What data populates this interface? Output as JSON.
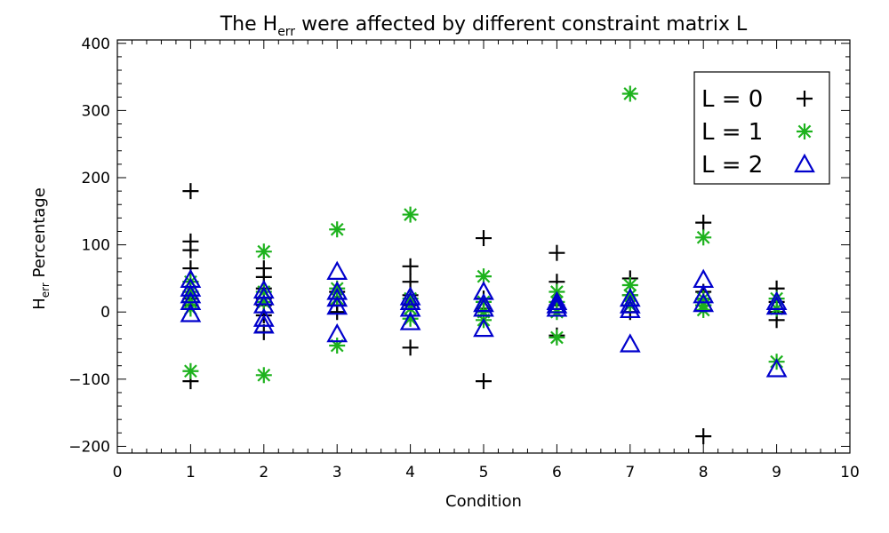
{
  "chart_data": {
    "type": "scatter",
    "title": {
      "prefix": "The H",
      "sub": "err",
      "suffix": " were affected by different constraint matrix L"
    },
    "xlabel": "Condition",
    "ylabel": {
      "prefix": "H",
      "sub": "err",
      "suffix": " Percentage"
    },
    "xlim": [
      0,
      10
    ],
    "ylim": [
      -210,
      405
    ],
    "xticks": [
      0,
      1,
      2,
      3,
      4,
      5,
      6,
      7,
      8,
      9,
      10
    ],
    "yticks": [
      -200,
      -100,
      0,
      100,
      200,
      300,
      400
    ],
    "grid": false,
    "legend_position": "top-right",
    "series": [
      {
        "name": "L = 0",
        "color": "#000000",
        "marker": "plus",
        "points": [
          {
            "x": 1,
            "y": 180
          },
          {
            "x": 1,
            "y": 105
          },
          {
            "x": 1,
            "y": 92
          },
          {
            "x": 1,
            "y": 65
          },
          {
            "x": 1,
            "y": 45
          },
          {
            "x": 1,
            "y": 30
          },
          {
            "x": 1,
            "y": 20
          },
          {
            "x": 1,
            "y": 10
          },
          {
            "x": 1,
            "y": -103
          },
          {
            "x": 2,
            "y": 65
          },
          {
            "x": 2,
            "y": 52
          },
          {
            "x": 2,
            "y": 35
          },
          {
            "x": 2,
            "y": 20
          },
          {
            "x": 2,
            "y": 10
          },
          {
            "x": 2,
            "y": -5
          },
          {
            "x": 2,
            "y": -30
          },
          {
            "x": 3,
            "y": 30
          },
          {
            "x": 3,
            "y": 20
          },
          {
            "x": 3,
            "y": 10
          },
          {
            "x": 3,
            "y": 0
          },
          {
            "x": 4,
            "y": 68
          },
          {
            "x": 4,
            "y": 45
          },
          {
            "x": 4,
            "y": 25
          },
          {
            "x": 4,
            "y": 10
          },
          {
            "x": 4,
            "y": -53
          },
          {
            "x": 5,
            "y": 110
          },
          {
            "x": 5,
            "y": 20
          },
          {
            "x": 5,
            "y": 5
          },
          {
            "x": 5,
            "y": -103
          },
          {
            "x": 6,
            "y": 88
          },
          {
            "x": 6,
            "y": 45
          },
          {
            "x": 6,
            "y": 10
          },
          {
            "x": 6,
            "y": -35
          },
          {
            "x": 7,
            "y": 50
          },
          {
            "x": 7,
            "y": 25
          },
          {
            "x": 7,
            "y": 10
          },
          {
            "x": 7,
            "y": 0
          },
          {
            "x": 8,
            "y": 133
          },
          {
            "x": 8,
            "y": 30
          },
          {
            "x": 8,
            "y": 10
          },
          {
            "x": 8,
            "y": -185
          },
          {
            "x": 9,
            "y": 35
          },
          {
            "x": 9,
            "y": 15
          },
          {
            "x": 9,
            "y": 0
          },
          {
            "x": 9,
            "y": -12
          }
        ]
      },
      {
        "name": "L = 1",
        "color": "#1db21d",
        "marker": "asterisk",
        "points": [
          {
            "x": 1,
            "y": 45
          },
          {
            "x": 1,
            "y": 30
          },
          {
            "x": 1,
            "y": 15
          },
          {
            "x": 1,
            "y": 5
          },
          {
            "x": 1,
            "y": -88
          },
          {
            "x": 2,
            "y": 90
          },
          {
            "x": 2,
            "y": 30
          },
          {
            "x": 2,
            "y": 15
          },
          {
            "x": 2,
            "y": -94
          },
          {
            "x": 3,
            "y": 123
          },
          {
            "x": 3,
            "y": 35
          },
          {
            "x": 3,
            "y": 20
          },
          {
            "x": 3,
            "y": -50
          },
          {
            "x": 4,
            "y": 145
          },
          {
            "x": 4,
            "y": 20
          },
          {
            "x": 4,
            "y": 5
          },
          {
            "x": 4,
            "y": -10
          },
          {
            "x": 5,
            "y": 53
          },
          {
            "x": 5,
            "y": 15
          },
          {
            "x": 5,
            "y": 0
          },
          {
            "x": 5,
            "y": -12
          },
          {
            "x": 6,
            "y": 30
          },
          {
            "x": 6,
            "y": 15
          },
          {
            "x": 6,
            "y": 0
          },
          {
            "x": 6,
            "y": -38
          },
          {
            "x": 7,
            "y": 325
          },
          {
            "x": 7,
            "y": 40
          },
          {
            "x": 7,
            "y": 25
          },
          {
            "x": 7,
            "y": 10
          },
          {
            "x": 8,
            "y": 111
          },
          {
            "x": 8,
            "y": 20
          },
          {
            "x": 8,
            "y": 10
          },
          {
            "x": 8,
            "y": 3
          },
          {
            "x": 9,
            "y": 20
          },
          {
            "x": 9,
            "y": 5
          },
          {
            "x": 9,
            "y": -74
          }
        ]
      },
      {
        "name": "L = 2",
        "color": "#0000cc",
        "marker": "triangle",
        "points": [
          {
            "x": 1,
            "y": 48
          },
          {
            "x": 1,
            "y": 35
          },
          {
            "x": 1,
            "y": 25
          },
          {
            "x": 1,
            "y": 15
          },
          {
            "x": 1,
            "y": -3
          },
          {
            "x": 2,
            "y": 32
          },
          {
            "x": 2,
            "y": 22
          },
          {
            "x": 2,
            "y": 10
          },
          {
            "x": 2,
            "y": -10
          },
          {
            "x": 2,
            "y": -20
          },
          {
            "x": 3,
            "y": 60
          },
          {
            "x": 3,
            "y": 30
          },
          {
            "x": 3,
            "y": 20
          },
          {
            "x": 3,
            "y": 8
          },
          {
            "x": 3,
            "y": -33
          },
          {
            "x": 4,
            "y": 22
          },
          {
            "x": 4,
            "y": 15
          },
          {
            "x": 4,
            "y": 5
          },
          {
            "x": 4,
            "y": -15
          },
          {
            "x": 5,
            "y": 30
          },
          {
            "x": 5,
            "y": 12
          },
          {
            "x": 5,
            "y": 5
          },
          {
            "x": 5,
            "y": -25
          },
          {
            "x": 6,
            "y": 15
          },
          {
            "x": 6,
            "y": 10
          },
          {
            "x": 6,
            "y": 5
          },
          {
            "x": 7,
            "y": 20
          },
          {
            "x": 7,
            "y": 10
          },
          {
            "x": 7,
            "y": 3
          },
          {
            "x": 7,
            "y": -48
          },
          {
            "x": 8,
            "y": 48
          },
          {
            "x": 8,
            "y": 25
          },
          {
            "x": 8,
            "y": 12
          },
          {
            "x": 9,
            "y": 15
          },
          {
            "x": 9,
            "y": 8
          },
          {
            "x": 9,
            "y": -85
          }
        ]
      }
    ]
  }
}
